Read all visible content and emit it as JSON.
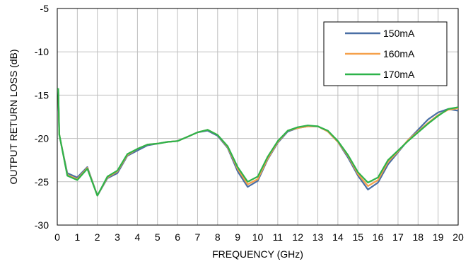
{
  "chart_data": {
    "type": "line",
    "title": "",
    "xlabel": "FREQUENCY (GHz)",
    "ylabel": "OUTPUT RETURN LOSS (dB)",
    "xlim": [
      0,
      20
    ],
    "ylim": [
      -30,
      -5
    ],
    "xticks": [
      0,
      1,
      2,
      3,
      4,
      5,
      6,
      7,
      8,
      9,
      10,
      11,
      12,
      13,
      14,
      15,
      16,
      17,
      18,
      19,
      20
    ],
    "yticks": [
      -30,
      -25,
      -20,
      -15,
      -10,
      -5
    ],
    "grid": true,
    "legend_position": "top-right",
    "series": [
      {
        "name": "150mA",
        "color": "#4a6fa5",
        "x": [
          0.05,
          0.1,
          0.5,
          1.0,
          1.5,
          2.0,
          2.5,
          3.0,
          3.5,
          4.0,
          4.5,
          5.0,
          5.5,
          6.0,
          6.5,
          7.0,
          7.5,
          8.0,
          8.5,
          9.0,
          9.5,
          10.0,
          10.5,
          11.0,
          11.5,
          12.0,
          12.5,
          13.0,
          13.5,
          14.0,
          14.5,
          15.0,
          15.5,
          16.0,
          16.5,
          17.0,
          17.5,
          18.0,
          18.5,
          19.0,
          19.5,
          20.0
        ],
        "y": [
          -14.4,
          -19.6,
          -24.0,
          -24.5,
          -23.3,
          -26.6,
          -24.6,
          -24.0,
          -22.0,
          -21.4,
          -20.8,
          -20.6,
          -20.4,
          -20.3,
          -19.8,
          -19.3,
          -19.1,
          -19.7,
          -21.1,
          -23.8,
          -25.6,
          -24.9,
          -22.4,
          -20.5,
          -19.2,
          -18.8,
          -18.6,
          -18.6,
          -19.2,
          -20.4,
          -22.2,
          -24.3,
          -25.9,
          -25.1,
          -23.0,
          -21.6,
          -20.2,
          -19.0,
          -17.8,
          -17.0,
          -16.6,
          -16.8
        ]
      },
      {
        "name": "160mA",
        "color": "#f5a04a",
        "x": [
          0.05,
          0.1,
          0.5,
          1.0,
          1.5,
          2.0,
          2.5,
          3.0,
          3.5,
          4.0,
          4.5,
          5.0,
          5.5,
          6.0,
          6.5,
          7.0,
          7.5,
          8.0,
          8.5,
          9.0,
          9.5,
          10.0,
          10.5,
          11.0,
          11.5,
          12.0,
          12.5,
          13.0,
          13.5,
          14.0,
          14.5,
          15.0,
          15.5,
          16.0,
          16.5,
          17.0,
          17.5,
          18.0,
          18.5,
          19.0,
          19.5,
          20.0
        ],
        "y": [
          -14.3,
          -19.5,
          -24.2,
          -24.7,
          -23.4,
          -26.6,
          -24.5,
          -23.8,
          -21.9,
          -21.2,
          -20.7,
          -20.6,
          -20.4,
          -20.3,
          -19.8,
          -19.3,
          -19.0,
          -19.6,
          -21.0,
          -23.5,
          -25.3,
          -24.7,
          -22.3,
          -20.4,
          -19.1,
          -18.8,
          -18.6,
          -18.6,
          -19.2,
          -20.4,
          -22.0,
          -24.1,
          -25.5,
          -24.8,
          -22.7,
          -21.5,
          -20.2,
          -19.2,
          -18.2,
          -17.3,
          -16.7,
          -16.5
        ]
      },
      {
        "name": "170mA",
        "color": "#2db34a",
        "x": [
          0.05,
          0.1,
          0.5,
          1.0,
          1.5,
          2.0,
          2.5,
          3.0,
          3.5,
          4.0,
          4.5,
          5.0,
          5.5,
          6.0,
          6.5,
          7.0,
          7.5,
          8.0,
          8.5,
          9.0,
          9.5,
          10.0,
          10.5,
          11.0,
          11.5,
          12.0,
          12.5,
          13.0,
          13.5,
          14.0,
          14.5,
          15.0,
          15.5,
          16.0,
          16.5,
          17.0,
          17.5,
          18.0,
          18.5,
          19.0,
          19.5,
          20.0
        ],
        "y": [
          -14.2,
          -19.5,
          -24.3,
          -24.8,
          -23.5,
          -26.6,
          -24.4,
          -23.7,
          -21.8,
          -21.2,
          -20.7,
          -20.6,
          -20.4,
          -20.3,
          -19.8,
          -19.3,
          -19.0,
          -19.6,
          -20.9,
          -23.3,
          -25.0,
          -24.4,
          -22.1,
          -20.3,
          -19.1,
          -18.7,
          -18.5,
          -18.6,
          -19.1,
          -20.3,
          -21.9,
          -23.9,
          -25.1,
          -24.5,
          -22.5,
          -21.4,
          -20.3,
          -19.3,
          -18.3,
          -17.4,
          -16.6,
          -16.4
        ]
      }
    ]
  }
}
